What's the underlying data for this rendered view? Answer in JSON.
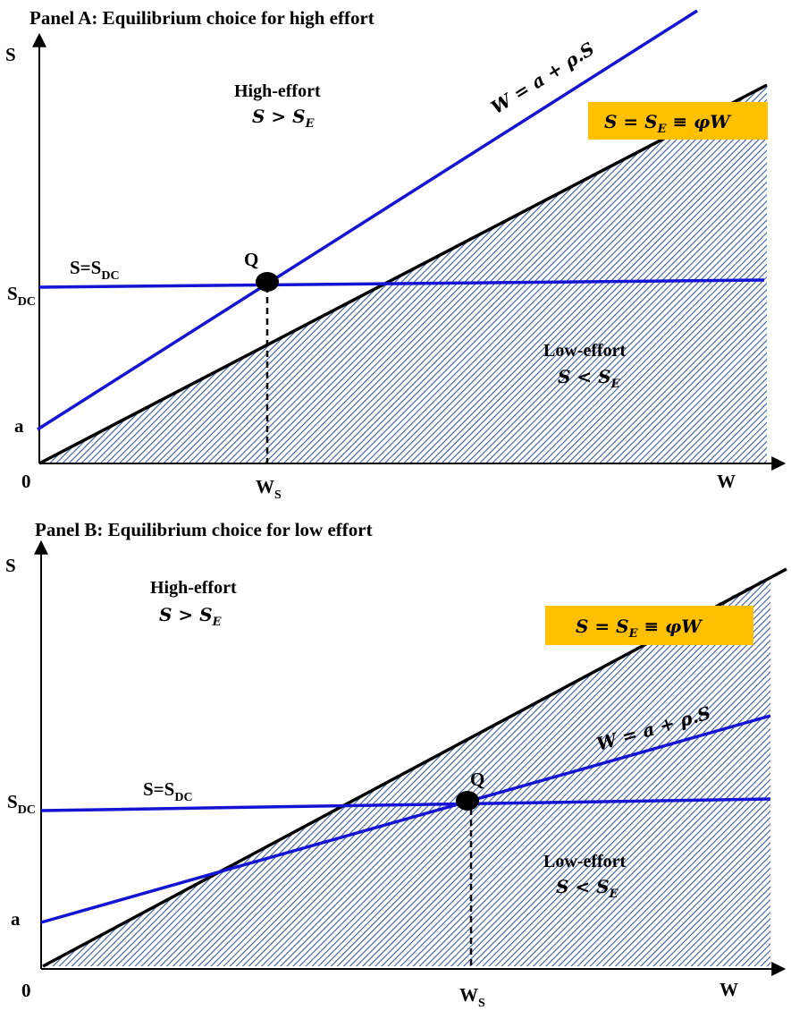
{
  "colors": {
    "blue": "#1414d2",
    "black": "#000000",
    "hatch": "#3a5a9c",
    "box": "#ffc000"
  },
  "panel_a": {
    "title": "Panel A: Equilibrium choice for high effort",
    "y_axis": "S",
    "x_axis": "W",
    "origin": "0",
    "a_label": "a",
    "sdc_label": "S",
    "sdc_sub": "DC",
    "ws_label": "W",
    "ws_sub": "S",
    "q_label": "Q",
    "sdc_line_label": "S=S",
    "sdc_line_sub": "DC",
    "high_effort": "High-effort",
    "high_effort_cond": "S > S",
    "high_effort_sub": "E",
    "low_effort": "Low-effort",
    "low_effort_cond": "S < S",
    "low_effort_sub": "E",
    "w_line_label": "W = a + ρ.S",
    "box_pre": "S = S",
    "box_sub": "E",
    "box_post": " ≡ φW"
  },
  "panel_b": {
    "title": "Panel B: Equilibrium choice for low effort",
    "y_axis": "S",
    "x_axis": "W",
    "origin": "0",
    "a_label": "a",
    "sdc_label": "S",
    "sdc_sub": "DC",
    "ws_label": "W",
    "ws_sub": "S",
    "q_label": "Q",
    "sdc_line_label": "S=S",
    "sdc_line_sub": "DC",
    "high_effort": "High-effort",
    "high_effort_cond": "S > S",
    "high_effort_sub": "E",
    "low_effort": "Low-effort",
    "low_effort_cond": "S < S",
    "low_effort_sub": "E",
    "w_line_label": "W = a + ρ.S",
    "box_pre": "S = S",
    "box_sub": "E",
    "box_post": " ≡ φW"
  }
}
